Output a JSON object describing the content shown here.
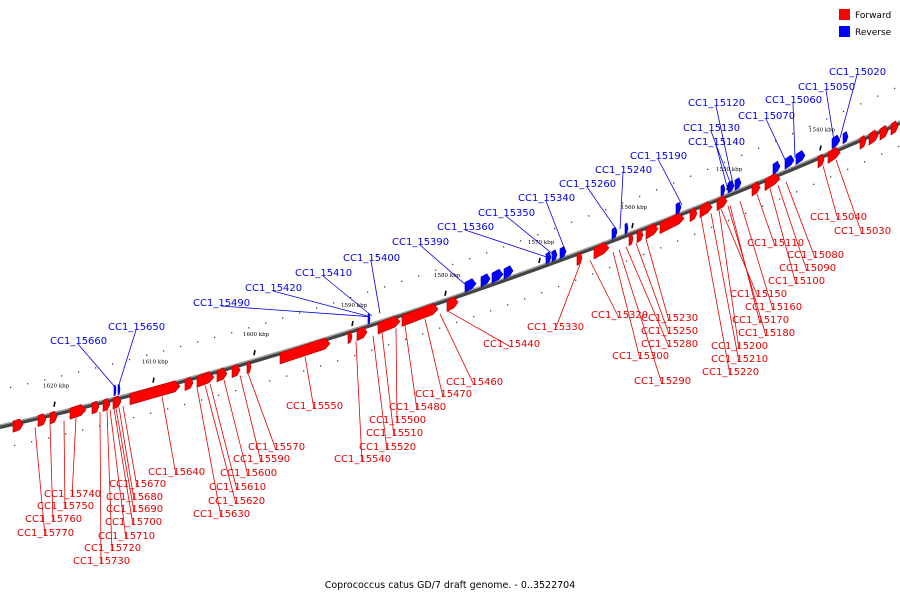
{
  "footer": "Coprococcus catus GD/7 draft genome. - 0..3522704",
  "legend": [
    {
      "label": "Forward",
      "color": "#ff0000"
    },
    {
      "label": "Reverse",
      "color": "#0000ff"
    }
  ],
  "colors": {
    "forward_label": "#e00000",
    "reverse_label": "#0000e0",
    "backbone": "#808080"
  },
  "ticks": [
    "1540 kbp",
    "1550 kbp",
    "1560 kbp",
    "1570 kbp",
    "1580 kbp",
    "1590 kbp",
    "1600 kbp",
    "1610 kbp",
    "1620 kbp"
  ],
  "reverse_genes": [
    "CC1_15020",
    "CC1_15050",
    "CC1_15060",
    "CC1_15070",
    "CC1_15120",
    "CC1_15130",
    "CC1_15140",
    "CC1_15190",
    "CC1_15240",
    "CC1_15260",
    "CC1_15340",
    "CC1_15350",
    "CC1_15360",
    "CC1_15390",
    "CC1_15400",
    "CC1_15410",
    "CC1_15420",
    "CC1_15490",
    "CC1_15650",
    "CC1_15660"
  ],
  "forward_genes": [
    "CC1_15030",
    "CC1_15040",
    "CC1_15080",
    "CC1_15090",
    "CC1_15100",
    "CC1_15110",
    "CC1_15150",
    "CC1_15160",
    "CC1_15170",
    "CC1_15180",
    "CC1_15200",
    "CC1_15210",
    "CC1_15220",
    "CC1_15230",
    "CC1_15250",
    "CC1_15280",
    "CC1_15290",
    "CC1_15300",
    "CC1_15320",
    "CC1_15330",
    "CC1_15440",
    "CC1_15460",
    "CC1_15470",
    "CC1_15480",
    "CC1_15500",
    "CC1_15510",
    "CC1_15520",
    "CC1_15540",
    "CC1_15550",
    "CC1_15570",
    "CC1_15590",
    "CC1_15600",
    "CC1_15610",
    "CC1_15620",
    "CC1_15630",
    "CC1_15640",
    "CC1_15670",
    "CC1_15680",
    "CC1_15690",
    "CC1_15700",
    "CC1_15710",
    "CC1_15720",
    "CC1_15730",
    "CC1_15740",
    "CC1_15750",
    "CC1_15760",
    "CC1_15770"
  ]
}
